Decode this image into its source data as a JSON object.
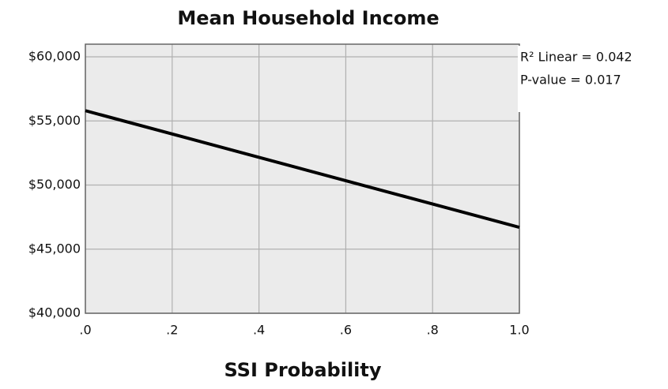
{
  "chart_data": {
    "type": "line",
    "title": "Mean Household Income",
    "x_label": "SSI Probability",
    "x": [
      0,
      1
    ],
    "values": [
      55800,
      46700
    ],
    "color": "#000000",
    "xlim": [
      0,
      1
    ],
    "ylim": [
      40000,
      60000
    ],
    "xticks": [
      {
        "value": 0,
        "label": ".0"
      },
      {
        "value": 0.2,
        "label": ".2"
      },
      {
        "value": 0.4,
        "label": ".4"
      },
      {
        "value": 0.6,
        "label": ".6"
      },
      {
        "value": 0.8,
        "label": ".8"
      },
      {
        "value": 1,
        "label": "1.0"
      }
    ],
    "yticks": [
      {
        "value": 40000,
        "label": "$40,000"
      },
      {
        "value": 45000,
        "label": "$45,000"
      },
      {
        "value": 50000,
        "label": "$50,000"
      },
      {
        "value": 55000,
        "label": "$55,000"
      },
      {
        "value": 60000,
        "label": "$60,000"
      }
    ],
    "grid": true,
    "annotations": [
      "R² Linear = 0.042",
      "P-value = 0.017"
    ]
  }
}
